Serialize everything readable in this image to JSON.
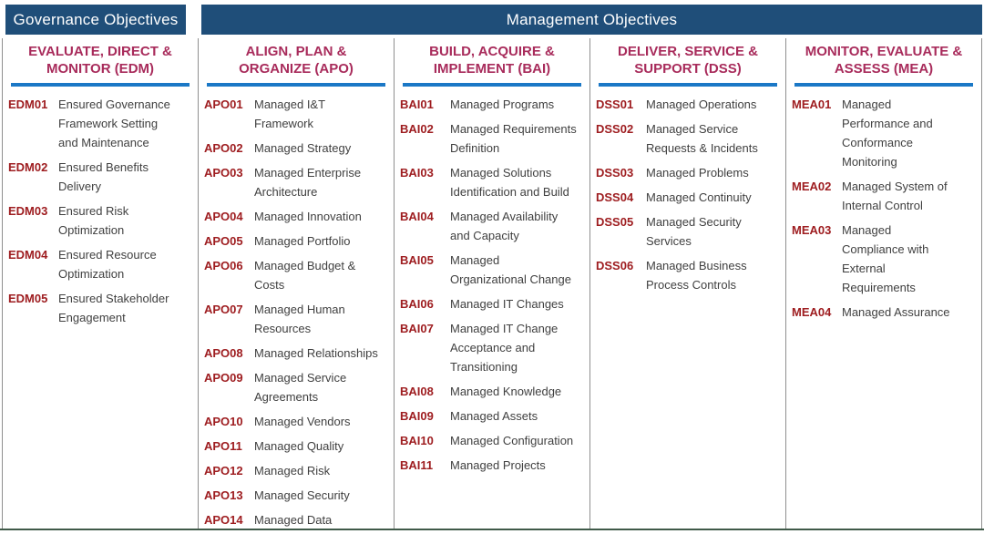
{
  "palette": {
    "header_bg": "#1F4E79",
    "header_text": "#FFFFFF",
    "column_heading": "#A82B5B",
    "heading_rule": "#1B78C6",
    "objective_code": "#9E1D20",
    "objective_text": "#404040",
    "divider": "#8F8F8F",
    "bottom_rule": "#3F5A49"
  },
  "headers": {
    "governance": "Governance Objectives",
    "management": "Management Objectives"
  },
  "columns": [
    {
      "id": "EDM",
      "group": "governance",
      "heading": "EVALUATE, DIRECT &\nMONITOR (EDM)",
      "items": [
        {
          "code": "EDM01",
          "label": "Ensured Governance\nFramework Setting\nand Maintenance"
        },
        {
          "code": "EDM02",
          "label": "Ensured Benefits\nDelivery"
        },
        {
          "code": "EDM03",
          "label": "Ensured Risk\nOptimization"
        },
        {
          "code": "EDM04",
          "label": "Ensured Resource\nOptimization"
        },
        {
          "code": "EDM05",
          "label": "Ensured Stakeholder\nEngagement"
        }
      ]
    },
    {
      "id": "APO",
      "group": "management",
      "heading": "ALIGN, PLAN &\nORGANIZE (APO)",
      "items": [
        {
          "code": "APO01",
          "label": "Managed I&T\nFramework"
        },
        {
          "code": "APO02",
          "label": "Managed Strategy"
        },
        {
          "code": "APO03",
          "label": "Managed Enterprise\nArchitecture"
        },
        {
          "code": "APO04",
          "label": "Managed Innovation"
        },
        {
          "code": "APO05",
          "label": "Managed Portfolio"
        },
        {
          "code": "APO06",
          "label": "Managed Budget &\nCosts"
        },
        {
          "code": "APO07",
          "label": "Managed Human\nResources"
        },
        {
          "code": "APO08",
          "label": "Managed Relationships"
        },
        {
          "code": "APO09",
          "label": "Managed Service\nAgreements"
        },
        {
          "code": "APO10",
          "label": "Managed Vendors"
        },
        {
          "code": "APO11",
          "label": "Managed Quality"
        },
        {
          "code": "APO12",
          "label": "Managed Risk"
        },
        {
          "code": "APO13",
          "label": "Managed Security"
        },
        {
          "code": "APO14",
          "label": "Managed Data"
        }
      ]
    },
    {
      "id": "BAI",
      "group": "management",
      "heading": "BUILD, ACQUIRE &\nIMPLEMENT (BAI)",
      "items": [
        {
          "code": "BAI01",
          "label": "Managed Programs"
        },
        {
          "code": "BAI02",
          "label": "Managed Requirements\nDefinition"
        },
        {
          "code": "BAI03",
          "label": "Managed Solutions\nIdentification and Build"
        },
        {
          "code": "BAI04",
          "label": "Managed Availability\nand Capacity"
        },
        {
          "code": "BAI05",
          "label": "Managed\nOrganizational Change"
        },
        {
          "code": "BAI06",
          "label": "Managed IT Changes"
        },
        {
          "code": "BAI07",
          "label": "Managed IT Change\nAcceptance and\nTransitioning"
        },
        {
          "code": "BAI08",
          "label": "Managed Knowledge"
        },
        {
          "code": "BAI09",
          "label": "Managed Assets"
        },
        {
          "code": "BAI10",
          "label": "Managed Configuration"
        },
        {
          "code": "BAI11",
          "label": "Managed Projects"
        }
      ]
    },
    {
      "id": "DSS",
      "group": "management",
      "heading": "DELIVER, SERVICE &\nSUPPORT (DSS)",
      "items": [
        {
          "code": "DSS01",
          "label": "Managed Operations"
        },
        {
          "code": "DSS02",
          "label": "Managed Service\nRequests & Incidents"
        },
        {
          "code": "DSS03",
          "label": "Managed Problems"
        },
        {
          "code": "DSS04",
          "label": "Managed Continuity"
        },
        {
          "code": "DSS05",
          "label": "Managed Security\nServices"
        },
        {
          "code": "DSS06",
          "label": "Managed Business\nProcess Controls"
        }
      ]
    },
    {
      "id": "MEA",
      "group": "management",
      "heading": "MONITOR, EVALUATE &\nASSESS (MEA)",
      "items": [
        {
          "code": "MEA01",
          "label": "Managed\nPerformance and\nConformance\nMonitoring"
        },
        {
          "code": "MEA02",
          "label": "Managed System of\nInternal Control"
        },
        {
          "code": "MEA03",
          "label": "Managed\nCompliance with\nExternal\nRequirements"
        },
        {
          "code": "MEA04",
          "label": "Managed Assurance"
        }
      ]
    }
  ]
}
